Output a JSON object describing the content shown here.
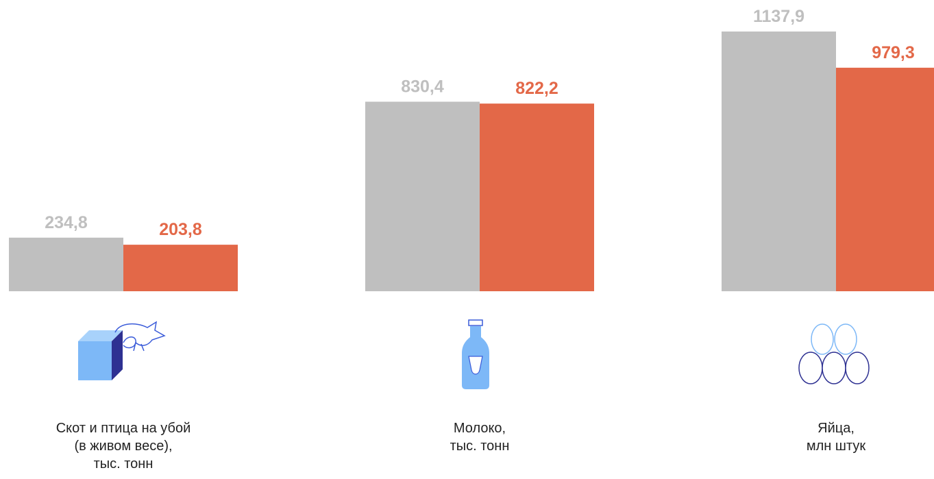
{
  "chart_data": {
    "type": "bar",
    "categories": [
      "Скот и птица на убой\n(в живом весе),\nтыс. тонн",
      "Молоко,\nтыс. тонн",
      "Яйца,\nмлн штук"
    ],
    "series": [
      {
        "color": "#bfbfbf",
        "values": [
          234.8,
          830.4,
          1137.9
        ],
        "value_labels": [
          "234,8",
          "830,4",
          "1137,9"
        ]
      },
      {
        "color": "#e36848",
        "values": [
          203.8,
          822.2,
          979.3
        ],
        "value_labels": [
          "203,8",
          "822,2",
          "979,3"
        ]
      }
    ]
  }
}
